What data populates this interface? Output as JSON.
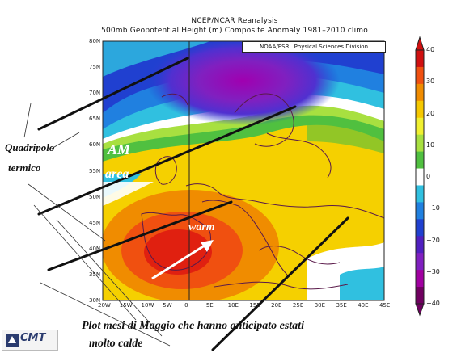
{
  "header": {
    "title_line1": "NCEP/NCAR Reanalysis",
    "title_line2": "500mb Geopotential Height (m) Composite Anomaly 1981–2010 climo"
  },
  "credit": "NOAA/ESRL Physical Sciences Division",
  "map": {
    "lat_labels": [
      "80N",
      "75N",
      "70N",
      "65N",
      "60N",
      "55N",
      "50N",
      "45N",
      "40N",
      "35N",
      "30N"
    ],
    "lon_labels": [
      "20W",
      "15W",
      "10W",
      "5W",
      "0",
      "5E",
      "10E",
      "15E",
      "20E",
      "25E",
      "30E",
      "35E",
      "40E",
      "45E"
    ],
    "lon_range": [
      -20,
      45
    ],
    "lat_range": [
      30,
      80
    ]
  },
  "colorbar": {
    "ticks": [
      "40",
      "30",
      "20",
      "10",
      "0",
      "−10",
      "−20",
      "−30",
      "−40"
    ],
    "colors": [
      "#d01010",
      "#f05010",
      "#f08c00",
      "#f5c800",
      "#f0f030",
      "#a8e040",
      "#50c040",
      "#ffffff",
      "#30c0e0",
      "#2080e0",
      "#2040d0",
      "#5020c0",
      "#8020c0",
      "#a000a0",
      "#700060"
    ]
  },
  "annotations": {
    "quadripolo": "Quadripolo",
    "termico": "termico",
    "am": "AM",
    "area": "area",
    "warm": "warm",
    "caption_line1": "Plot mesi di Maggio che hanno anticipato estati",
    "caption_line2": "molto calde"
  },
  "logo": {
    "text": "CMT",
    "icon": "cmt-logo-icon"
  }
}
